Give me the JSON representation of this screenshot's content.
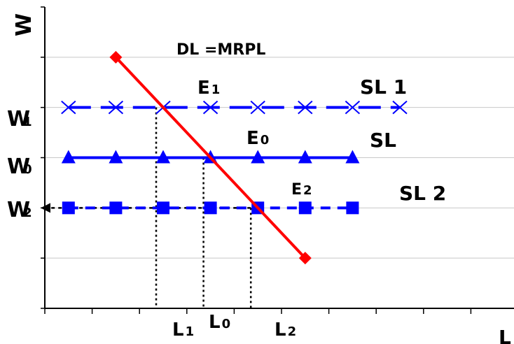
{
  "chart_data": {
    "type": "line",
    "title": "",
    "xlabel": "L",
    "ylabel": "W",
    "xlim": [
      0,
      10
    ],
    "ylim": [
      0,
      6
    ],
    "x_ticks": [
      0,
      1,
      2,
      3,
      4,
      5,
      6,
      7,
      8,
      9,
      10
    ],
    "y_ticks": [
      0,
      1,
      2,
      3,
      4,
      5,
      6
    ],
    "horizontal_gridlines": true,
    "series": [
      {
        "name": "DL =MRPL",
        "color": "#ff0000",
        "marker": "diamond",
        "dash": "solid",
        "x": [
          1.5,
          5.5
        ],
        "y": [
          5,
          1
        ]
      },
      {
        "name": "SL 1",
        "color": "#0000ff",
        "marker": "x",
        "dash": "dashed",
        "x": [
          0.5,
          1.5,
          2.5,
          3.5,
          4.5,
          5.5,
          6.5,
          7.5
        ],
        "y": [
          4,
          4,
          4,
          4,
          4,
          4,
          4,
          4
        ]
      },
      {
        "name": "SL",
        "color": "#0000ff",
        "marker": "triangle",
        "dash": "solid",
        "x": [
          0.5,
          1.5,
          2.5,
          3.5,
          4.5,
          5.5,
          6.5
        ],
        "y": [
          3,
          3,
          3,
          3,
          3,
          3,
          3
        ]
      },
      {
        "name": "SL 2",
        "color": "#0000ff",
        "marker": "square",
        "dash": "dashed",
        "x": [
          0.5,
          1.5,
          2.5,
          3.5,
          4.5,
          5.5,
          6.5
        ],
        "y": [
          2,
          2,
          2,
          2,
          2,
          2,
          2
        ]
      }
    ],
    "equilibria": [
      {
        "label": "E1",
        "x": 2.5,
        "y": 4,
        "w_label": "W1",
        "l_label": "L1"
      },
      {
        "label": "E0",
        "x": 3.5,
        "y": 3,
        "w_label": "W0",
        "l_label": "L0"
      },
      {
        "label": "E2",
        "x": 4.5,
        "y": 2,
        "w_label": "W2",
        "l_label": "L2"
      }
    ],
    "annotations": {
      "demand_label": "DL =MRPL",
      "supply1_label": "SL 1",
      "supply0_label": "SL",
      "supply2_label": "SL 2"
    }
  }
}
